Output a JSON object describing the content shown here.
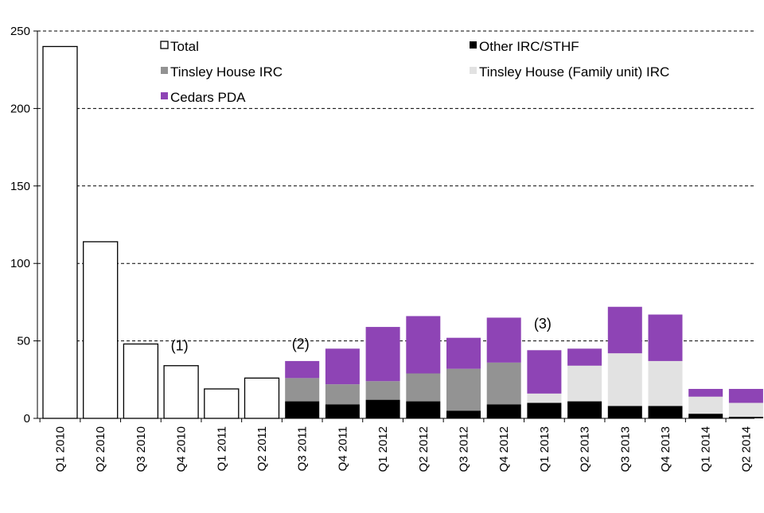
{
  "chart_data": {
    "type": "bar",
    "stacked": true,
    "title": "",
    "xlabel": "",
    "ylabel": "",
    "ylim": [
      0,
      250
    ],
    "yticks": [
      0,
      50,
      100,
      150,
      200,
      250
    ],
    "grid": "horizontal dashed",
    "legend_position": "top",
    "categories": [
      "Q1 2010",
      "Q2 2010",
      "Q3 2010",
      "Q4 2010",
      "Q1 2011",
      "Q2 2011",
      "Q3 2011",
      "Q4 2011",
      "Q1 2012",
      "Q2 2012",
      "Q3 2012",
      "Q4 2012",
      "Q1 2013",
      "Q2 2013",
      "Q3 2013",
      "Q4 2013",
      "Q1 2014",
      "Q2 2014"
    ],
    "series": [
      {
        "name": "Total",
        "color": "#ffffff",
        "values": [
          240,
          114,
          48,
          34,
          19,
          26,
          null,
          null,
          null,
          null,
          null,
          null,
          null,
          null,
          null,
          null,
          null,
          null
        ]
      },
      {
        "name": "Other IRC/STHF",
        "color": "#000000",
        "values": [
          null,
          null,
          null,
          null,
          null,
          null,
          11,
          9,
          12,
          11,
          5,
          9,
          10,
          11,
          8,
          8,
          3,
          1
        ]
      },
      {
        "name": "Tinsley House IRC",
        "color": "#939393",
        "values": [
          null,
          null,
          null,
          null,
          null,
          null,
          15,
          13,
          12,
          18,
          27,
          27,
          0,
          0,
          0,
          0,
          0,
          0
        ]
      },
      {
        "name": "Tinsley House (Family unit) IRC",
        "color": "#e2e2e2",
        "values": [
          null,
          null,
          null,
          null,
          null,
          null,
          0,
          0,
          0,
          0,
          0,
          0,
          6,
          23,
          34,
          29,
          11,
          9
        ]
      },
      {
        "name": "Cedars PDA",
        "color": "#8e44b5",
        "values": [
          null,
          null,
          null,
          null,
          null,
          null,
          11,
          23,
          35,
          37,
          20,
          29,
          28,
          11,
          30,
          30,
          5,
          9
        ]
      }
    ],
    "annotations": [
      {
        "text": "(1)",
        "category": "Q4 2010",
        "y": 44
      },
      {
        "text": "(2)",
        "category": "Q3 2011",
        "y": 45
      },
      {
        "text": "(3)",
        "category": "Q1 2013",
        "y": 58
      }
    ]
  }
}
